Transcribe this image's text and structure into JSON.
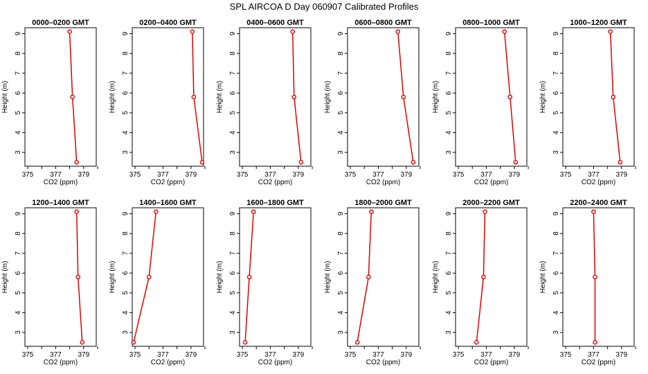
{
  "title": "SPL AIRCOA D  Day 060907  Calibrated Profiles",
  "colors": {
    "line": "#dd0000",
    "marker": "#dd0000",
    "axis": "#000000"
  },
  "chart_data": [
    {
      "type": "line",
      "title": "0000–0200 GMT",
      "xlabel": "CO2 (ppm)",
      "ylabel": "Height (m)",
      "xlim": [
        374.8,
        379.9
      ],
      "ylim": [
        2.3,
        9.3
      ],
      "xticks": [
        375,
        376,
        377,
        378,
        379,
        380
      ],
      "xtick_labels": [
        "375",
        "",
        "377",
        "",
        "379",
        ""
      ],
      "yticks": [
        3,
        4,
        5,
        6,
        7,
        8,
        9
      ],
      "ytick_labels": [
        "3",
        "4",
        "5",
        "6",
        "7",
        "8",
        "9"
      ],
      "points": [
        {
          "x": 378.0,
          "y": 9.1
        },
        {
          "x": 378.2,
          "y": 5.8
        },
        {
          "x": 378.5,
          "y": 2.5
        }
      ]
    },
    {
      "type": "line",
      "title": "0200–0400 GMT",
      "xlabel": "CO2 (ppm)",
      "ylabel": "Height (m)",
      "xlim": [
        374.8,
        379.9
      ],
      "ylim": [
        2.3,
        9.3
      ],
      "xticks": [
        375,
        376,
        377,
        378,
        379,
        380
      ],
      "xtick_labels": [
        "375",
        "",
        "377",
        "",
        "379",
        ""
      ],
      "yticks": [
        3,
        4,
        5,
        6,
        7,
        8,
        9
      ],
      "ytick_labels": [
        "3",
        "4",
        "5",
        "6",
        "7",
        "8",
        "9"
      ],
      "points": [
        {
          "x": 379.1,
          "y": 9.1
        },
        {
          "x": 379.2,
          "y": 5.8
        },
        {
          "x": 379.8,
          "y": 2.5
        }
      ]
    },
    {
      "type": "line",
      "title": "0400–0600 GMT",
      "xlabel": "CO2 (ppm)",
      "ylabel": "Height (m)",
      "xlim": [
        374.8,
        379.9
      ],
      "ylim": [
        2.3,
        9.3
      ],
      "xticks": [
        375,
        376,
        377,
        378,
        379,
        380
      ],
      "xtick_labels": [
        "375",
        "",
        "377",
        "",
        "379",
        ""
      ],
      "yticks": [
        3,
        4,
        5,
        6,
        7,
        8,
        9
      ],
      "ytick_labels": [
        "3",
        "4",
        "5",
        "6",
        "7",
        "8",
        "9"
      ],
      "points": [
        {
          "x": 378.6,
          "y": 9.1
        },
        {
          "x": 378.7,
          "y": 5.8
        },
        {
          "x": 379.2,
          "y": 2.5
        }
      ]
    },
    {
      "type": "line",
      "title": "0600–0800 GMT",
      "xlabel": "CO2 (ppm)",
      "ylabel": "Height (m)",
      "xlim": [
        374.8,
        379.9
      ],
      "ylim": [
        2.3,
        9.3
      ],
      "xticks": [
        375,
        376,
        377,
        378,
        379,
        380
      ],
      "xtick_labels": [
        "375",
        "",
        "377",
        "",
        "379",
        ""
      ],
      "yticks": [
        3,
        4,
        5,
        6,
        7,
        8,
        9
      ],
      "ytick_labels": [
        "3",
        "4",
        "5",
        "6",
        "7",
        "8",
        "9"
      ],
      "points": [
        {
          "x": 378.4,
          "y": 9.1
        },
        {
          "x": 378.8,
          "y": 5.8
        },
        {
          "x": 379.5,
          "y": 2.5
        }
      ]
    },
    {
      "type": "line",
      "title": "0800–1000 GMT",
      "xlabel": "CO2 (ppm)",
      "ylabel": "Height (m)",
      "xlim": [
        374.8,
        379.9
      ],
      "ylim": [
        2.3,
        9.3
      ],
      "xticks": [
        375,
        376,
        377,
        378,
        379,
        380
      ],
      "xtick_labels": [
        "375",
        "",
        "377",
        "",
        "379",
        ""
      ],
      "yticks": [
        3,
        4,
        5,
        6,
        7,
        8,
        9
      ],
      "ytick_labels": [
        "3",
        "4",
        "5",
        "6",
        "7",
        "8",
        "9"
      ],
      "points": [
        {
          "x": 378.3,
          "y": 9.1
        },
        {
          "x": 378.7,
          "y": 5.8
        },
        {
          "x": 379.1,
          "y": 2.5
        }
      ]
    },
    {
      "type": "line",
      "title": "1000–1200 GMT",
      "xlabel": "CO2 (ppm)",
      "ylabel": "Height (m)",
      "xlim": [
        374.8,
        379.9
      ],
      "ylim": [
        2.3,
        9.3
      ],
      "xticks": [
        375,
        376,
        377,
        378,
        379,
        380
      ],
      "xtick_labels": [
        "375",
        "",
        "377",
        "",
        "379",
        ""
      ],
      "yticks": [
        3,
        4,
        5,
        6,
        7,
        8,
        9
      ],
      "ytick_labels": [
        "3",
        "4",
        "5",
        "6",
        "7",
        "8",
        "9"
      ],
      "points": [
        {
          "x": 378.2,
          "y": 9.1
        },
        {
          "x": 378.4,
          "y": 5.8
        },
        {
          "x": 378.9,
          "y": 2.5
        }
      ]
    },
    {
      "type": "line",
      "title": "1200–1400 GMT",
      "xlabel": "CO2 (ppm)",
      "ylabel": "Height (m)",
      "xlim": [
        374.8,
        379.9
      ],
      "ylim": [
        2.3,
        9.3
      ],
      "xticks": [
        375,
        376,
        377,
        378,
        379,
        380
      ],
      "xtick_labels": [
        "375",
        "",
        "377",
        "",
        "379",
        ""
      ],
      "yticks": [
        3,
        4,
        5,
        6,
        7,
        8,
        9
      ],
      "ytick_labels": [
        "3",
        "4",
        "5",
        "6",
        "7",
        "8",
        "9"
      ],
      "points": [
        {
          "x": 378.5,
          "y": 9.1
        },
        {
          "x": 378.6,
          "y": 5.8
        },
        {
          "x": 378.9,
          "y": 2.5
        }
      ]
    },
    {
      "type": "line",
      "title": "1400–1600 GMT",
      "xlabel": "CO2 (ppm)",
      "ylabel": "Height (m)",
      "xlim": [
        374.8,
        379.9
      ],
      "ylim": [
        2.3,
        9.3
      ],
      "xticks": [
        375,
        376,
        377,
        378,
        379,
        380
      ],
      "xtick_labels": [
        "375",
        "",
        "377",
        "",
        "379",
        ""
      ],
      "yticks": [
        3,
        4,
        5,
        6,
        7,
        8,
        9
      ],
      "ytick_labels": [
        "3",
        "4",
        "5",
        "6",
        "7",
        "8",
        "9"
      ],
      "points": [
        {
          "x": 376.5,
          "y": 9.1
        },
        {
          "x": 376.0,
          "y": 5.8
        },
        {
          "x": 374.9,
          "y": 2.5
        }
      ]
    },
    {
      "type": "line",
      "title": "1600–1800 GMT",
      "xlabel": "CO2 (ppm)",
      "ylabel": "Height (m)",
      "xlim": [
        374.8,
        379.9
      ],
      "ylim": [
        2.3,
        9.3
      ],
      "xticks": [
        375,
        376,
        377,
        378,
        379,
        380
      ],
      "xtick_labels": [
        "375",
        "",
        "377",
        "",
        "379",
        ""
      ],
      "yticks": [
        3,
        4,
        5,
        6,
        7,
        8,
        9
      ],
      "ytick_labels": [
        "3",
        "4",
        "5",
        "6",
        "7",
        "8",
        "9"
      ],
      "points": [
        {
          "x": 375.8,
          "y": 9.1
        },
        {
          "x": 375.5,
          "y": 5.8
        },
        {
          "x": 375.2,
          "y": 2.5
        }
      ]
    },
    {
      "type": "line",
      "title": "1800–2000 GMT",
      "xlabel": "CO2 (ppm)",
      "ylabel": "Height (m)",
      "xlim": [
        374.8,
        379.9
      ],
      "ylim": [
        2.3,
        9.3
      ],
      "xticks": [
        375,
        376,
        377,
        378,
        379,
        380
      ],
      "xtick_labels": [
        "375",
        "",
        "377",
        "",
        "379",
        ""
      ],
      "yticks": [
        3,
        4,
        5,
        6,
        7,
        8,
        9
      ],
      "ytick_labels": [
        "3",
        "4",
        "5",
        "6",
        "7",
        "8",
        "9"
      ],
      "points": [
        {
          "x": 376.5,
          "y": 9.1
        },
        {
          "x": 376.3,
          "y": 5.8
        },
        {
          "x": 375.5,
          "y": 2.5
        }
      ]
    },
    {
      "type": "line",
      "title": "2000–2200 GMT",
      "xlabel": "CO2 (ppm)",
      "ylabel": "Height (m)",
      "xlim": [
        374.8,
        379.9
      ],
      "ylim": [
        2.3,
        9.3
      ],
      "xticks": [
        375,
        376,
        377,
        378,
        379,
        380
      ],
      "xtick_labels": [
        "375",
        "",
        "377",
        "",
        "379",
        ""
      ],
      "yticks": [
        3,
        4,
        5,
        6,
        7,
        8,
        9
      ],
      "ytick_labels": [
        "3",
        "4",
        "5",
        "6",
        "7",
        "8",
        "9"
      ],
      "points": [
        {
          "x": 376.9,
          "y": 9.1
        },
        {
          "x": 376.8,
          "y": 5.8
        },
        {
          "x": 376.3,
          "y": 2.5
        }
      ]
    },
    {
      "type": "line",
      "title": "2200–2400 GMT",
      "xlabel": "CO2 (ppm)",
      "ylabel": "Height (m)",
      "xlim": [
        374.8,
        379.9
      ],
      "ylim": [
        2.3,
        9.3
      ],
      "xticks": [
        375,
        376,
        377,
        378,
        379,
        380
      ],
      "xtick_labels": [
        "375",
        "",
        "377",
        "",
        "379",
        ""
      ],
      "yticks": [
        3,
        4,
        5,
        6,
        7,
        8,
        9
      ],
      "ytick_labels": [
        "3",
        "4",
        "5",
        "6",
        "7",
        "8",
        "9"
      ],
      "points": [
        {
          "x": 377.0,
          "y": 9.1
        },
        {
          "x": 377.1,
          "y": 5.8
        },
        {
          "x": 377.1,
          "y": 2.5
        }
      ]
    }
  ]
}
